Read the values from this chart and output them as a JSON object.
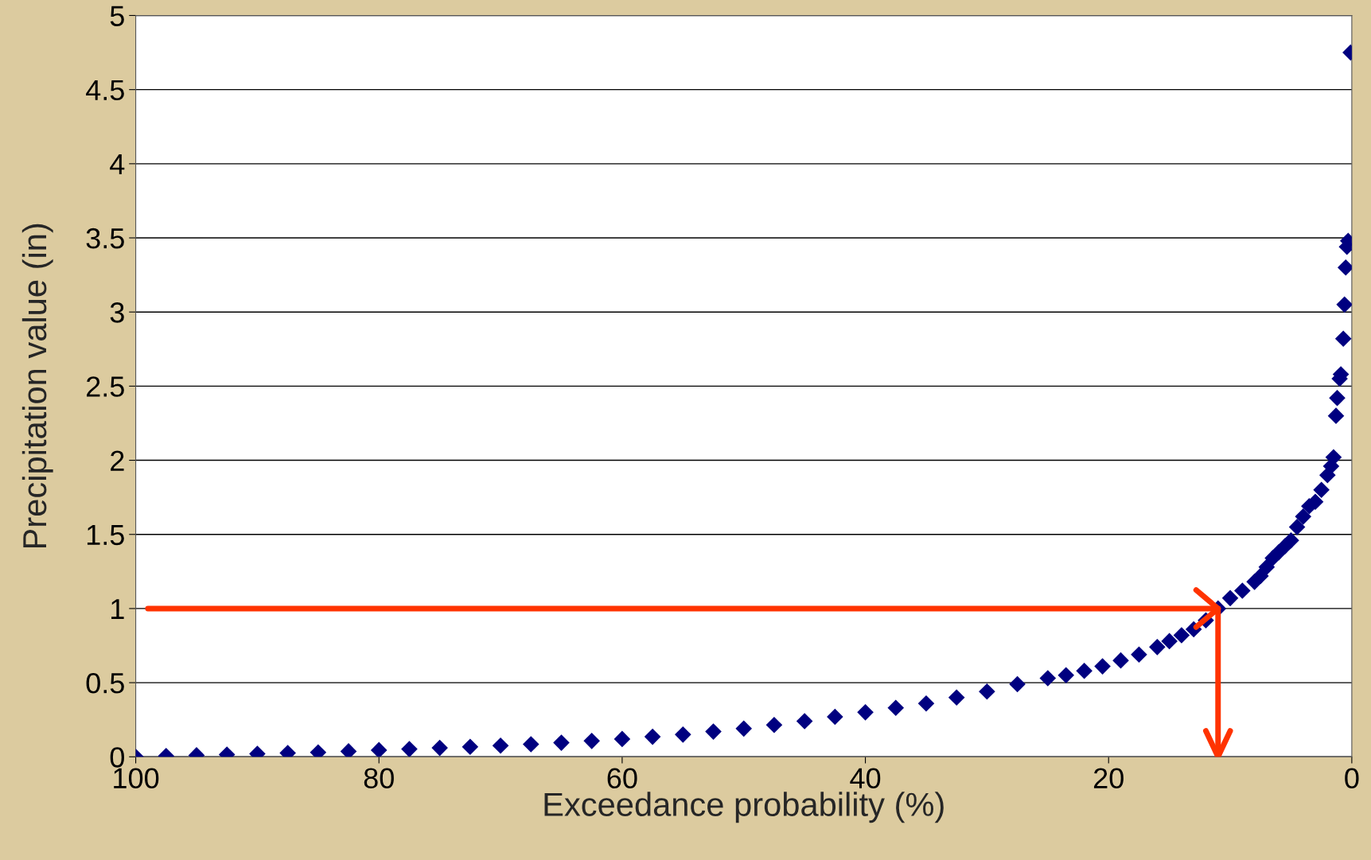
{
  "chart_data": {
    "type": "scatter",
    "xlabel": "Exceedance probability (%)",
    "ylabel": "Precipitation value (in)",
    "x": [
      100,
      97.5,
      95,
      92.5,
      90,
      87.5,
      85,
      82.5,
      80,
      77.5,
      75,
      72.5,
      70,
      67.5,
      65,
      62.5,
      60,
      57.5,
      55,
      52.5,
      50,
      47.5,
      45,
      42.5,
      40,
      37.5,
      35,
      32.5,
      30,
      27.5,
      25,
      23.5,
      22,
      20.5,
      19,
      17.5,
      16,
      15,
      14,
      13,
      12,
      11,
      10,
      9,
      8,
      7.5,
      7,
      6.5,
      6,
      5.5,
      5,
      4.5,
      4,
      3.5,
      3,
      2.5,
      2,
      1.7,
      1.5,
      1.3,
      1.2,
      1.0,
      0.9,
      0.7,
      0.6,
      0.5,
      0.4,
      0.3,
      0.1
    ],
    "series": [
      {
        "color": "#000080",
        "values": [
          0.0,
          0.005,
          0.01,
          0.015,
          0.02,
          0.025,
          0.03,
          0.037,
          0.045,
          0.052,
          0.06,
          0.067,
          0.075,
          0.085,
          0.095,
          0.107,
          0.12,
          0.135,
          0.15,
          0.17,
          0.19,
          0.215,
          0.24,
          0.27,
          0.3,
          0.33,
          0.36,
          0.4,
          0.44,
          0.49,
          0.53,
          0.55,
          0.58,
          0.61,
          0.65,
          0.69,
          0.74,
          0.78,
          0.82,
          0.86,
          0.92,
          1.0,
          1.07,
          1.12,
          1.18,
          1.22,
          1.28,
          1.34,
          1.38,
          1.42,
          1.46,
          1.55,
          1.62,
          1.69,
          1.72,
          1.8,
          1.9,
          1.96,
          2.02,
          2.3,
          2.42,
          2.55,
          2.58,
          2.82,
          3.05,
          3.3,
          3.44,
          3.48,
          4.75
        ]
      }
    ],
    "xlim": [
      100,
      0
    ],
    "xticks": [
      100,
      80,
      60,
      40,
      20,
      0
    ],
    "ylim": [
      0,
      5
    ],
    "yticks": [
      0,
      0.5,
      1,
      1.5,
      2,
      2.5,
      3,
      3.5,
      4,
      4.5,
      5
    ],
    "grid": "y",
    "marker": "diamond",
    "ref_lines": [
      {
        "axis": "y",
        "value": 1,
        "color": "#ff3300"
      },
      {
        "axis": "x",
        "value": 11,
        "color": "#ff3300"
      }
    ]
  }
}
